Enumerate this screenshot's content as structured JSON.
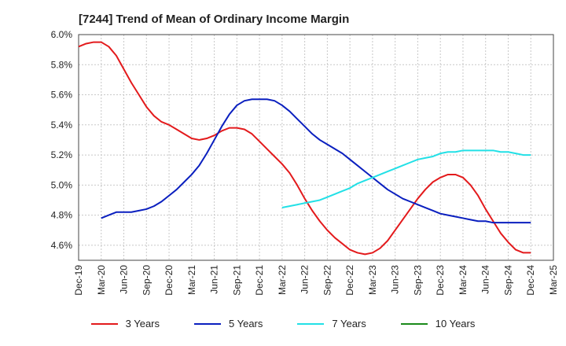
{
  "chart_data": {
    "type": "line",
    "title": "[7244]  Trend of Mean of Ordinary Income Margin",
    "xlabel": "",
    "ylabel": "",
    "x_ticks": [
      "Dec-19",
      "Mar-20",
      "Jun-20",
      "Sep-20",
      "Dec-20",
      "Mar-21",
      "Jun-21",
      "Sep-21",
      "Dec-21",
      "Mar-22",
      "Jun-22",
      "Sep-22",
      "Dec-22",
      "Mar-23",
      "Jun-23",
      "Sep-23",
      "Dec-23",
      "Mar-24",
      "Jun-24",
      "Sep-24",
      "Dec-24",
      "Mar-25"
    ],
    "y_ticks": [
      "4.6%",
      "4.8%",
      "5.0%",
      "5.2%",
      "5.4%",
      "5.6%",
      "5.8%",
      "6.0%"
    ],
    "ylim": [
      4.5,
      6.0
    ],
    "grid": true,
    "legend_position": "bottom",
    "series": [
      {
        "name": "3 Years",
        "color": "#e31a1c",
        "x": [
          "Dec-19",
          "Jan-20",
          "Feb-20",
          "Mar-20",
          "Apr-20",
          "May-20",
          "Jun-20",
          "Jul-20",
          "Aug-20",
          "Sep-20",
          "Oct-20",
          "Nov-20",
          "Dec-20",
          "Jan-21",
          "Feb-21",
          "Mar-21",
          "Apr-21",
          "May-21",
          "Jun-21",
          "Jul-21",
          "Aug-21",
          "Sep-21",
          "Oct-21",
          "Nov-21",
          "Dec-21",
          "Jan-22",
          "Feb-22",
          "Mar-22",
          "Apr-22",
          "May-22",
          "Jun-22",
          "Jul-22",
          "Aug-22",
          "Sep-22",
          "Oct-22",
          "Nov-22",
          "Dec-22",
          "Jan-23",
          "Feb-23",
          "Mar-23",
          "Apr-23",
          "May-23",
          "Jun-23",
          "Jul-23",
          "Aug-23",
          "Sep-23",
          "Oct-23",
          "Nov-23",
          "Dec-23",
          "Jan-24",
          "Feb-24",
          "Mar-24",
          "Apr-24",
          "May-24",
          "Jun-24",
          "Jul-24",
          "Aug-24",
          "Sep-24",
          "Oct-24",
          "Nov-24",
          "Dec-24"
        ],
        "values": [
          5.92,
          5.94,
          5.95,
          5.95,
          5.92,
          5.86,
          5.77,
          5.68,
          5.6,
          5.52,
          5.46,
          5.42,
          5.4,
          5.37,
          5.34,
          5.31,
          5.3,
          5.31,
          5.33,
          5.36,
          5.38,
          5.38,
          5.37,
          5.34,
          5.29,
          5.24,
          5.19,
          5.14,
          5.08,
          5.0,
          4.91,
          4.83,
          4.76,
          4.7,
          4.65,
          4.61,
          4.57,
          4.55,
          4.54,
          4.55,
          4.58,
          4.63,
          4.7,
          4.77,
          4.84,
          4.91,
          4.97,
          5.02,
          5.05,
          5.07,
          5.07,
          5.05,
          5.0,
          4.93,
          4.84,
          4.76,
          4.68,
          4.62,
          4.57,
          4.55,
          4.55
        ]
      },
      {
        "name": "5 Years",
        "color": "#0a1fbf",
        "x": [
          "Mar-20",
          "Apr-20",
          "May-20",
          "Jun-20",
          "Jul-20",
          "Aug-20",
          "Sep-20",
          "Oct-20",
          "Nov-20",
          "Dec-20",
          "Jan-21",
          "Feb-21",
          "Mar-21",
          "Apr-21",
          "May-21",
          "Jun-21",
          "Jul-21",
          "Aug-21",
          "Sep-21",
          "Oct-21",
          "Nov-21",
          "Dec-21",
          "Jan-22",
          "Feb-22",
          "Mar-22",
          "Apr-22",
          "May-22",
          "Jun-22",
          "Jul-22",
          "Aug-22",
          "Sep-22",
          "Oct-22",
          "Nov-22",
          "Dec-22",
          "Jan-23",
          "Feb-23",
          "Mar-23",
          "Apr-23",
          "May-23",
          "Jun-23",
          "Jul-23",
          "Aug-23",
          "Sep-23",
          "Oct-23",
          "Nov-23",
          "Dec-23",
          "Jan-24",
          "Feb-24",
          "Mar-24",
          "Apr-24",
          "May-24",
          "Jun-24",
          "Jul-24",
          "Aug-24",
          "Sep-24",
          "Oct-24",
          "Nov-24",
          "Dec-24"
        ],
        "values": [
          4.78,
          4.8,
          4.82,
          4.82,
          4.82,
          4.83,
          4.84,
          4.86,
          4.89,
          4.93,
          4.97,
          5.02,
          5.07,
          5.13,
          5.21,
          5.3,
          5.39,
          5.47,
          5.53,
          5.56,
          5.57,
          5.57,
          5.57,
          5.56,
          5.53,
          5.49,
          5.44,
          5.39,
          5.34,
          5.3,
          5.27,
          5.24,
          5.21,
          5.17,
          5.13,
          5.09,
          5.05,
          5.01,
          4.97,
          4.94,
          4.91,
          4.89,
          4.87,
          4.85,
          4.83,
          4.81,
          4.8,
          4.79,
          4.78,
          4.77,
          4.76,
          4.76,
          4.75,
          4.75,
          4.75,
          4.75,
          4.75,
          4.75
        ]
      },
      {
        "name": "7 Years",
        "color": "#22e0e6",
        "x": [
          "Mar-22",
          "Apr-22",
          "May-22",
          "Jun-22",
          "Jul-22",
          "Aug-22",
          "Sep-22",
          "Oct-22",
          "Nov-22",
          "Dec-22",
          "Jan-23",
          "Feb-23",
          "Mar-23",
          "Apr-23",
          "May-23",
          "Jun-23",
          "Jul-23",
          "Aug-23",
          "Sep-23",
          "Oct-23",
          "Nov-23",
          "Dec-23",
          "Jan-24",
          "Feb-24",
          "Mar-24",
          "Apr-24",
          "May-24",
          "Jun-24",
          "Jul-24",
          "Aug-24",
          "Sep-24",
          "Oct-24",
          "Nov-24",
          "Dec-24"
        ],
        "values": [
          4.85,
          4.86,
          4.87,
          4.88,
          4.89,
          4.9,
          4.92,
          4.94,
          4.96,
          4.98,
          5.01,
          5.03,
          5.05,
          5.07,
          5.09,
          5.11,
          5.13,
          5.15,
          5.17,
          5.18,
          5.19,
          5.21,
          5.22,
          5.22,
          5.23,
          5.23,
          5.23,
          5.23,
          5.23,
          5.22,
          5.22,
          5.21,
          5.2,
          5.2
        ]
      },
      {
        "name": "10 Years",
        "color": "#1a8a1a",
        "x": [],
        "values": []
      }
    ]
  }
}
